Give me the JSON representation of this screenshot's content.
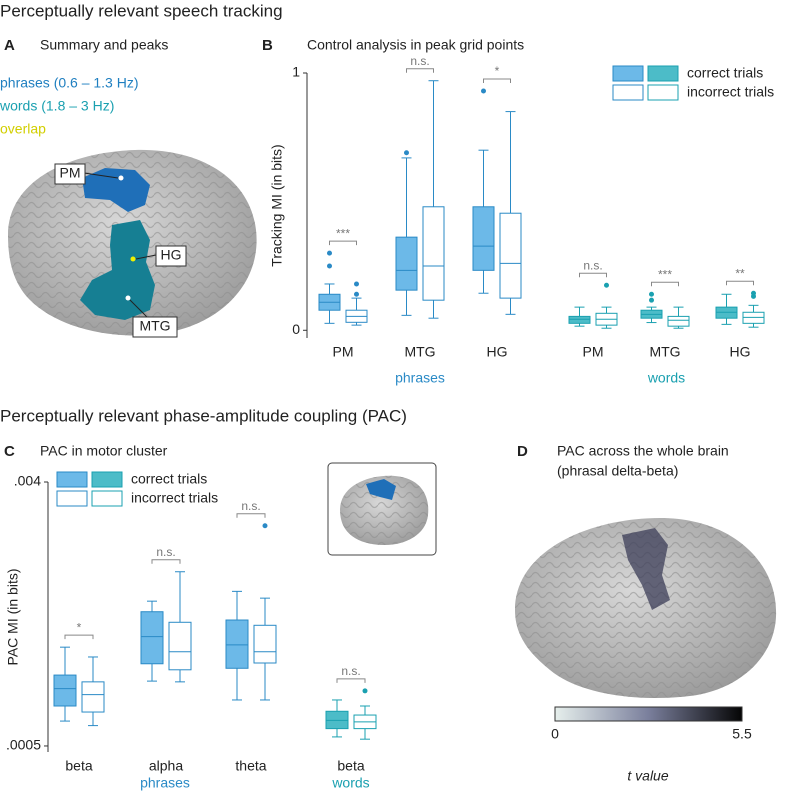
{
  "section_titles": [
    "Perceptually relevant speech tracking",
    "Perceptually relevant phase-amplitude coupling (PAC)"
  ],
  "panel_a": {
    "letter": "A",
    "title": "Summary and peaks",
    "legend": [
      {
        "label": "phrases (0.6 – 1.3 Hz)",
        "color": "#1f7fc0"
      },
      {
        "label": "words (1.8 – 3 Hz)",
        "color": "#1aa0b0"
      },
      {
        "label": "overlap",
        "color": "#d2cf00"
      }
    ],
    "regions": [
      "PM",
      "HG",
      "MTG"
    ]
  },
  "panel_d": {
    "letter": "D",
    "title": [
      "PAC across the whole brain",
      "(phrasal delta-beta)"
    ],
    "colorbar": {
      "ticks": [
        0,
        5.5
      ],
      "label": "t value"
    }
  },
  "chart_data": [
    {
      "type": "box",
      "letter": "B",
      "title": "Control analysis in peak grid points",
      "ylabel": "Tracking MI (in bits)",
      "ylim": [
        -0.03,
        1
      ],
      "yticks": [
        0,
        1
      ],
      "legend": [
        "correct trials",
        "incorrect trials"
      ],
      "groups": [
        {
          "name": "phrases",
          "color": "#2a8ac6",
          "fill": "#6cb9e8",
          "categories": [
            "PM",
            "MTG",
            "HG"
          ],
          "significance": [
            "***",
            "n.s.",
            "*"
          ],
          "boxes": [
            [
              {
                "whislo": 0.027,
                "q1": 0.078,
                "med": 0.109,
                "q3": 0.14,
                "whishi": 0.18,
                "fliers": [
                  0.25,
                  0.3
                ]
              },
              {
                "whislo": 0.02,
                "q1": 0.031,
                "med": 0.054,
                "q3": 0.078,
                "whishi": 0.125,
                "fliers": [
                  0.14,
                  0.18
                ]
              }
            ],
            [
              {
                "whislo": 0.058,
                "q1": 0.156,
                "med": 0.233,
                "q3": 0.362,
                "whishi": 0.67,
                "fliers": [
                  0.69
                ]
              },
              {
                "whislo": 0.047,
                "q1": 0.117,
                "med": 0.25,
                "q3": 0.48,
                "whishi": 0.97,
                "fliers": []
              }
            ],
            [
              {
                "whislo": 0.144,
                "q1": 0.233,
                "med": 0.327,
                "q3": 0.48,
                "whishi": 0.7,
                "fliers": [
                  0.93
                ]
              },
              {
                "whislo": 0.062,
                "q1": 0.125,
                "med": 0.26,
                "q3": 0.455,
                "whishi": 0.85,
                "fliers": []
              }
            ]
          ]
        },
        {
          "name": "words",
          "color": "#1aa0b0",
          "fill": "#4cbcc8",
          "categories": [
            "PM",
            "MTG",
            "HG"
          ],
          "significance": [
            "n.s.",
            "***",
            "**"
          ],
          "boxes": [
            [
              {
                "whislo": 0.016,
                "q1": 0.027,
                "med": 0.043,
                "q3": 0.054,
                "whishi": 0.09,
                "fliers": []
              },
              {
                "whislo": 0.008,
                "q1": 0.02,
                "med": 0.043,
                "q3": 0.066,
                "whishi": 0.09,
                "fliers": [
                  0.175
                ]
              }
            ],
            [
              {
                "whislo": 0.03,
                "q1": 0.047,
                "med": 0.062,
                "q3": 0.078,
                "whishi": 0.09,
                "fliers": [
                  0.117,
                  0.14
                ]
              },
              {
                "whislo": 0.008,
                "q1": 0.016,
                "med": 0.039,
                "q3": 0.054,
                "whishi": 0.09,
                "fliers": []
              }
            ],
            [
              {
                "whislo": 0.023,
                "q1": 0.047,
                "med": 0.07,
                "q3": 0.09,
                "whishi": 0.14,
                "fliers": []
              },
              {
                "whislo": 0.012,
                "q1": 0.027,
                "med": 0.05,
                "q3": 0.07,
                "whishi": 0.097,
                "fliers": [
                  0.132,
                  0.144
                ]
              }
            ]
          ]
        }
      ]
    },
    {
      "type": "box",
      "letter": "C",
      "title": "PAC in motor cluster",
      "ylabel": "PAC MI (in bits)",
      "ylim": [
        0.00042,
        0.004
      ],
      "yticks": [
        {
          "value": 0.0005,
          "label": ".0005"
        },
        {
          "value": 0.004,
          "label": ".004"
        }
      ],
      "legend": [
        "correct trials",
        "incorrect trials"
      ],
      "groups": [
        {
          "name": "phrases",
          "color": "#2a8ac6",
          "fill": "#6cb9e8",
          "categories": [
            "beta",
            "alpha",
            "theta"
          ],
          "significance": [
            "*",
            "n.s.",
            "n.s."
          ],
          "boxes": [
            [
              {
                "whislo": 0.00083,
                "q1": 0.00103,
                "med": 0.00126,
                "q3": 0.00144,
                "whishi": 0.00181,
                "fliers": []
              },
              {
                "whislo": 0.00077,
                "q1": 0.00095,
                "med": 0.00118,
                "q3": 0.00135,
                "whishi": 0.00168,
                "fliers": []
              }
            ],
            [
              {
                "whislo": 0.00136,
                "q1": 0.00159,
                "med": 0.00195,
                "q3": 0.00228,
                "whishi": 0.00242,
                "fliers": []
              },
              {
                "whislo": 0.00135,
                "q1": 0.00151,
                "med": 0.00175,
                "q3": 0.00214,
                "whishi": 0.00281,
                "fliers": []
              }
            ],
            [
              {
                "whislo": 0.00111,
                "q1": 0.00153,
                "med": 0.00184,
                "q3": 0.00217,
                "whishi": 0.00255,
                "fliers": []
              },
              {
                "whislo": 0.00111,
                "q1": 0.0016,
                "med": 0.00175,
                "q3": 0.0021,
                "whishi": 0.00246,
                "fliers": [
                  0.00342
                ]
              }
            ]
          ]
        },
        {
          "name": "words",
          "color": "#1aa0b0",
          "fill": "#4cbcc8",
          "categories": [
            "beta"
          ],
          "significance": [
            "n.s."
          ],
          "boxes": [
            [
              {
                "whislo": 0.00062,
                "q1": 0.00073,
                "med": 0.00084,
                "q3": 0.00096,
                "whishi": 0.00111,
                "fliers": []
              },
              {
                "whislo": 0.00059,
                "q1": 0.00073,
                "med": 0.00082,
                "q3": 0.00091,
                "whishi": 0.00103,
                "fliers": [
                  0.00123
                ]
              }
            ]
          ]
        }
      ]
    }
  ]
}
